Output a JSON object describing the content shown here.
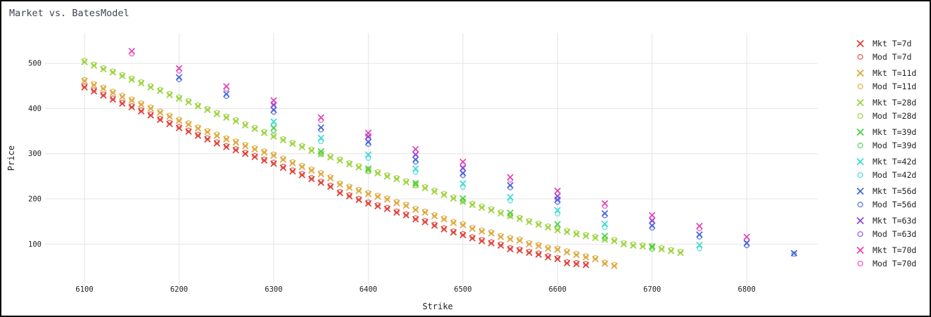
{
  "window": {
    "background": "#ffffff",
    "border_color": "#0d0d0d"
  },
  "title": "Market vs. BatesModel",
  "axes": {
    "x": {
      "label": "Strike",
      "ticks": [
        6100,
        6200,
        6300,
        6400,
        6500,
        6600,
        6700,
        6800
      ]
    },
    "y": {
      "label": "Price",
      "ticks": [
        100,
        200,
        300,
        400,
        500
      ]
    },
    "grid_color": "#e4e4e4",
    "tick_color": "#222222"
  },
  "legend": [
    {
      "label": "Mkt T=7d",
      "marker": "x",
      "color": "#df3e35"
    },
    {
      "label": "Mod T=7d",
      "marker": "o",
      "color": "#e8716a"
    },
    {
      "label": "Mkt T=11d",
      "marker": "x",
      "color": "#dda63d"
    },
    {
      "label": "Mod T=11d",
      "marker": "o",
      "color": "#e5c065"
    },
    {
      "label": "Mkt T=28d",
      "marker": "x",
      "color": "#9bd23a"
    },
    {
      "label": "Mod T=28d",
      "marker": "o",
      "color": "#b1dc66"
    },
    {
      "label": "Mkt T=39d",
      "marker": "x",
      "color": "#46cf4c"
    },
    {
      "label": "Mod T=39d",
      "marker": "o",
      "color": "#74da77"
    },
    {
      "label": "Mkt T=42d",
      "marker": "x",
      "color": "#38dcd3"
    },
    {
      "label": "Mod T=42d",
      "marker": "o",
      "color": "#69e4dc"
    },
    {
      "label": "Mkt T=56d",
      "marker": "x",
      "color": "#4466dd"
    },
    {
      "label": "Mod T=56d",
      "marker": "o",
      "color": "#7389e5"
    },
    {
      "label": "Mkt T=63d",
      "marker": "x",
      "color": "#8c46dd"
    },
    {
      "label": "Mod T=63d",
      "marker": "o",
      "color": "#a876e6"
    },
    {
      "label": "Mkt T=70d",
      "marker": "x",
      "color": "#e640b2"
    },
    {
      "label": "Mod T=70d",
      "marker": "o",
      "color": "#ec70c5"
    }
  ],
  "chart_data": {
    "type": "scatter",
    "title": "Market vs. BatesModel",
    "xlabel": "Strike",
    "ylabel": "Price",
    "xlim": [
      6068,
      6875
    ],
    "ylim": [
      15,
      567
    ],
    "grid": true,
    "legend_position": "right",
    "series": [
      {
        "name": "Mkt T=7d",
        "marker": "x",
        "color": "#df3e35",
        "x": [
          6100,
          6110,
          6120,
          6130,
          6140,
          6150,
          6160,
          6170,
          6180,
          6190,
          6200,
          6210,
          6220,
          6230,
          6240,
          6250,
          6260,
          6270,
          6280,
          6290,
          6300,
          6310,
          6320,
          6330,
          6340,
          6350,
          6360,
          6370,
          6380,
          6390,
          6400,
          6410,
          6420,
          6430,
          6440,
          6450,
          6460,
          6470,
          6480,
          6490,
          6500,
          6510,
          6520,
          6530,
          6540,
          6550,
          6560,
          6570,
          6580,
          6590,
          6600,
          6610,
          6620,
          6630
        ],
        "y": [
          447,
          438,
          429,
          420,
          411,
          403,
          394,
          385,
          375,
          366,
          357,
          349,
          340,
          332,
          323,
          315,
          308,
          300,
          293,
          285,
          278,
          269,
          261,
          253,
          244,
          236,
          227,
          213,
          206,
          198,
          190,
          184,
          178,
          170,
          164,
          155,
          149,
          141,
          133,
          126,
          120,
          113,
          107,
          102,
          97,
          89,
          86,
          81,
          77,
          71,
          67,
          58,
          56,
          54
        ]
      },
      {
        "name": "Mod T=7d",
        "marker": "o",
        "color": "#e8716a",
        "x": [
          6100,
          6110,
          6120,
          6130,
          6140,
          6150,
          6160,
          6170,
          6180,
          6190,
          6200,
          6210,
          6220,
          6230,
          6240,
          6250,
          6260,
          6270,
          6280,
          6290,
          6300,
          6310,
          6320,
          6330,
          6340,
          6350,
          6360,
          6370,
          6380,
          6390,
          6400,
          6410,
          6420,
          6430,
          6440,
          6450,
          6460,
          6470,
          6480,
          6490,
          6500,
          6510,
          6520,
          6530,
          6540,
          6550,
          6560,
          6570,
          6580,
          6590,
          6600,
          6610,
          6620,
          6630
        ],
        "y": [
          450,
          441,
          432,
          423,
          414,
          406,
          397,
          388,
          378,
          369,
          360,
          352,
          343,
          335,
          326,
          318,
          311,
          303,
          296,
          288,
          281,
          272,
          264,
          256,
          247,
          239,
          230,
          216,
          209,
          201,
          193,
          187,
          181,
          173,
          167,
          158,
          152,
          144,
          136,
          129,
          123,
          116,
          110,
          105,
          100,
          92,
          89,
          84,
          80,
          74,
          70,
          61,
          59,
          57
        ]
      },
      {
        "name": "Mkt T=11d",
        "marker": "x",
        "color": "#dda63d",
        "x": [
          6100,
          6110,
          6120,
          6130,
          6140,
          6150,
          6160,
          6170,
          6180,
          6190,
          6200,
          6210,
          6220,
          6230,
          6240,
          6250,
          6260,
          6270,
          6280,
          6290,
          6300,
          6310,
          6320,
          6330,
          6340,
          6350,
          6360,
          6370,
          6380,
          6390,
          6400,
          6410,
          6420,
          6430,
          6440,
          6450,
          6460,
          6470,
          6480,
          6490,
          6500,
          6510,
          6520,
          6530,
          6540,
          6550,
          6560,
          6570,
          6580,
          6590,
          6600,
          6610,
          6620,
          6630,
          6640,
          6650,
          6660
        ],
        "y": [
          461,
          452,
          444,
          435,
          426,
          418,
          409,
          400,
          391,
          382,
          373,
          365,
          356,
          348,
          340,
          332,
          325,
          317,
          310,
          303,
          296,
          287,
          279,
          271,
          263,
          255,
          246,
          232,
          225,
          218,
          211,
          205,
          199,
          191,
          185,
          176,
          170,
          162,
          155,
          147,
          142,
          134,
          128,
          124,
          116,
          111,
          108,
          100,
          96,
          90,
          88,
          82,
          76,
          71,
          67,
          57,
          52
        ]
      },
      {
        "name": "Mod T=11d",
        "marker": "o",
        "color": "#e5c065",
        "x": [
          6100,
          6110,
          6120,
          6130,
          6140,
          6150,
          6160,
          6170,
          6180,
          6190,
          6200,
          6210,
          6220,
          6230,
          6240,
          6250,
          6260,
          6270,
          6280,
          6290,
          6300,
          6310,
          6320,
          6330,
          6340,
          6350,
          6360,
          6370,
          6380,
          6390,
          6400,
          6410,
          6420,
          6430,
          6440,
          6450,
          6460,
          6470,
          6480,
          6490,
          6500,
          6510,
          6520,
          6530,
          6540,
          6550,
          6560,
          6570,
          6580,
          6590,
          6600,
          6610,
          6620,
          6630,
          6640,
          6650,
          6660
        ],
        "y": [
          464,
          455,
          447,
          438,
          429,
          421,
          412,
          403,
          394,
          385,
          376,
          368,
          359,
          351,
          343,
          335,
          328,
          320,
          313,
          306,
          299,
          290,
          282,
          274,
          266,
          258,
          249,
          235,
          228,
          221,
          214,
          208,
          202,
          194,
          188,
          179,
          173,
          165,
          158,
          150,
          145,
          137,
          131,
          127,
          119,
          114,
          111,
          103,
          99,
          93,
          91,
          85,
          79,
          74,
          70,
          60,
          55
        ]
      },
      {
        "name": "Mkt T=28d",
        "marker": "x",
        "color": "#9bd23a",
        "x": [
          6100,
          6110,
          6120,
          6130,
          6140,
          6150,
          6160,
          6170,
          6180,
          6190,
          6200,
          6210,
          6220,
          6230,
          6240,
          6250,
          6260,
          6270,
          6280,
          6290,
          6300,
          6310,
          6320,
          6330,
          6340,
          6350,
          6360,
          6370,
          6380,
          6390,
          6400,
          6410,
          6420,
          6430,
          6440,
          6450,
          6460,
          6470,
          6480,
          6490,
          6500,
          6510,
          6520,
          6530,
          6540,
          6550,
          6560,
          6570,
          6580,
          6590,
          6600,
          6610,
          6620,
          6630,
          6640,
          6650,
          6660,
          6670,
          6680,
          6690,
          6700,
          6710,
          6720,
          6730
        ],
        "y": [
          503,
          495,
          487,
          480,
          472,
          464,
          456,
          447,
          439,
          430,
          422,
          414,
          405,
          397,
          388,
          380,
          372,
          363,
          355,
          346,
          338,
          330,
          322,
          315,
          307,
          299,
          292,
          285,
          277,
          270,
          263,
          257,
          250,
          244,
          237,
          231,
          224,
          216,
          209,
          201,
          194,
          187,
          181,
          175,
          168,
          162,
          156,
          149,
          143,
          137,
          131,
          127,
          122,
          118,
          114,
          110,
          107,
          100,
          97,
          95,
          93,
          89,
          85,
          81
        ]
      },
      {
        "name": "Mod T=28d",
        "marker": "o",
        "color": "#b1dc66",
        "x": [
          6100,
          6110,
          6120,
          6130,
          6140,
          6150,
          6160,
          6170,
          6180,
          6190,
          6200,
          6210,
          6220,
          6230,
          6240,
          6250,
          6260,
          6270,
          6280,
          6290,
          6300,
          6310,
          6320,
          6330,
          6340,
          6350,
          6360,
          6370,
          6380,
          6390,
          6400,
          6410,
          6420,
          6430,
          6440,
          6450,
          6460,
          6470,
          6480,
          6490,
          6500,
          6510,
          6520,
          6530,
          6540,
          6550,
          6560,
          6570,
          6580,
          6590,
          6600,
          6610,
          6620,
          6630,
          6640,
          6650,
          6660,
          6670,
          6680,
          6690,
          6700,
          6710,
          6720,
          6730
        ],
        "y": [
          506,
          498,
          490,
          483,
          475,
          467,
          459,
          450,
          442,
          433,
          425,
          417,
          408,
          400,
          391,
          383,
          375,
          366,
          358,
          349,
          341,
          333,
          325,
          318,
          310,
          302,
          295,
          288,
          280,
          273,
          266,
          260,
          253,
          247,
          240,
          234,
          227,
          219,
          212,
          204,
          197,
          190,
          184,
          178,
          171,
          165,
          159,
          152,
          146,
          140,
          134,
          130,
          125,
          121,
          117,
          113,
          110,
          103,
          100,
          98,
          96,
          92,
          88,
          84
        ]
      },
      {
        "name": "Mkt T=39d",
        "marker": "x",
        "color": "#46cf4c",
        "x": [
          6300,
          6350,
          6400,
          6450,
          6500,
          6550,
          6600,
          6650,
          6700
        ],
        "y": [
          357,
          305,
          267,
          235,
          201,
          169,
          144,
          118,
          95
        ]
      },
      {
        "name": "Mod T=39d",
        "marker": "o",
        "color": "#74da77",
        "x": [
          6300,
          6350,
          6400,
          6450,
          6500,
          6550,
          6600,
          6650,
          6700
        ],
        "y": [
          351,
          299,
          261,
          229,
          195,
          163,
          138,
          112,
          89
        ]
      },
      {
        "name": "Mkt T=42d",
        "marker": "x",
        "color": "#38dcd3",
        "x": [
          6300,
          6350,
          6400,
          6450,
          6500,
          6550,
          6600,
          6650,
          6750
        ],
        "y": [
          371,
          335,
          298,
          267,
          234,
          204,
          175,
          145,
          98
        ]
      },
      {
        "name": "Mod T=42d",
        "marker": "o",
        "color": "#69e4dc",
        "x": [
          6300,
          6350,
          6400,
          6450,
          6500,
          6550,
          6600,
          6650,
          6750
        ],
        "y": [
          363,
          327,
          290,
          259,
          226,
          196,
          167,
          137,
          90
        ]
      },
      {
        "name": "Mkt T=56d",
        "marker": "x",
        "color": "#4466dd",
        "x": [
          6200,
          6250,
          6300,
          6350,
          6400,
          6450,
          6500,
          6550,
          6600,
          6650,
          6700,
          6750,
          6800,
          6850
        ],
        "y": [
          469,
          432,
          397,
          358,
          326,
          287,
          257,
          230,
          198,
          168,
          141,
          121,
          102,
          80
        ]
      },
      {
        "name": "Mod T=56d",
        "marker": "o",
        "color": "#7389e5",
        "x": [
          6200,
          6250,
          6300,
          6350,
          6400,
          6450,
          6500,
          6550,
          6600,
          6650,
          6700,
          6750,
          6800,
          6850
        ],
        "y": [
          464,
          427,
          392,
          353,
          321,
          282,
          252,
          225,
          193,
          163,
          136,
          116,
          97,
          78
        ]
      },
      {
        "name": "Mkt T=63d",
        "marker": "x",
        "color": "#8c46dd",
        "x": [
          6300,
          6400,
          6450,
          6500,
          6600,
          6700
        ],
        "y": [
          408,
          338,
          298,
          268,
          206,
          152
        ]
      },
      {
        "name": "Mod T=63d",
        "marker": "o",
        "color": "#a876e6",
        "x": [
          6300,
          6400,
          6450,
          6500,
          6600,
          6700
        ],
        "y": [
          403,
          333,
          293,
          263,
          201,
          147
        ]
      },
      {
        "name": "Mkt T=70d",
        "marker": "x",
        "color": "#e640b2",
        "x": [
          6150,
          6200,
          6250,
          6300,
          6350,
          6400,
          6450,
          6500,
          6550,
          6600,
          6650,
          6700,
          6750,
          6800
        ],
        "y": [
          527,
          489,
          449,
          418,
          380,
          346,
          310,
          282,
          248,
          218,
          190,
          164,
          140,
          116
        ]
      },
      {
        "name": "Mod T=70d",
        "marker": "o",
        "color": "#ec70c5",
        "x": [
          6150,
          6200,
          6250,
          6300,
          6350,
          6400,
          6450,
          6500,
          6550,
          6600,
          6650,
          6700,
          6750,
          6800
        ],
        "y": [
          521,
          483,
          443,
          412,
          374,
          340,
          304,
          276,
          242,
          212,
          184,
          158,
          134,
          110
        ]
      }
    ]
  }
}
